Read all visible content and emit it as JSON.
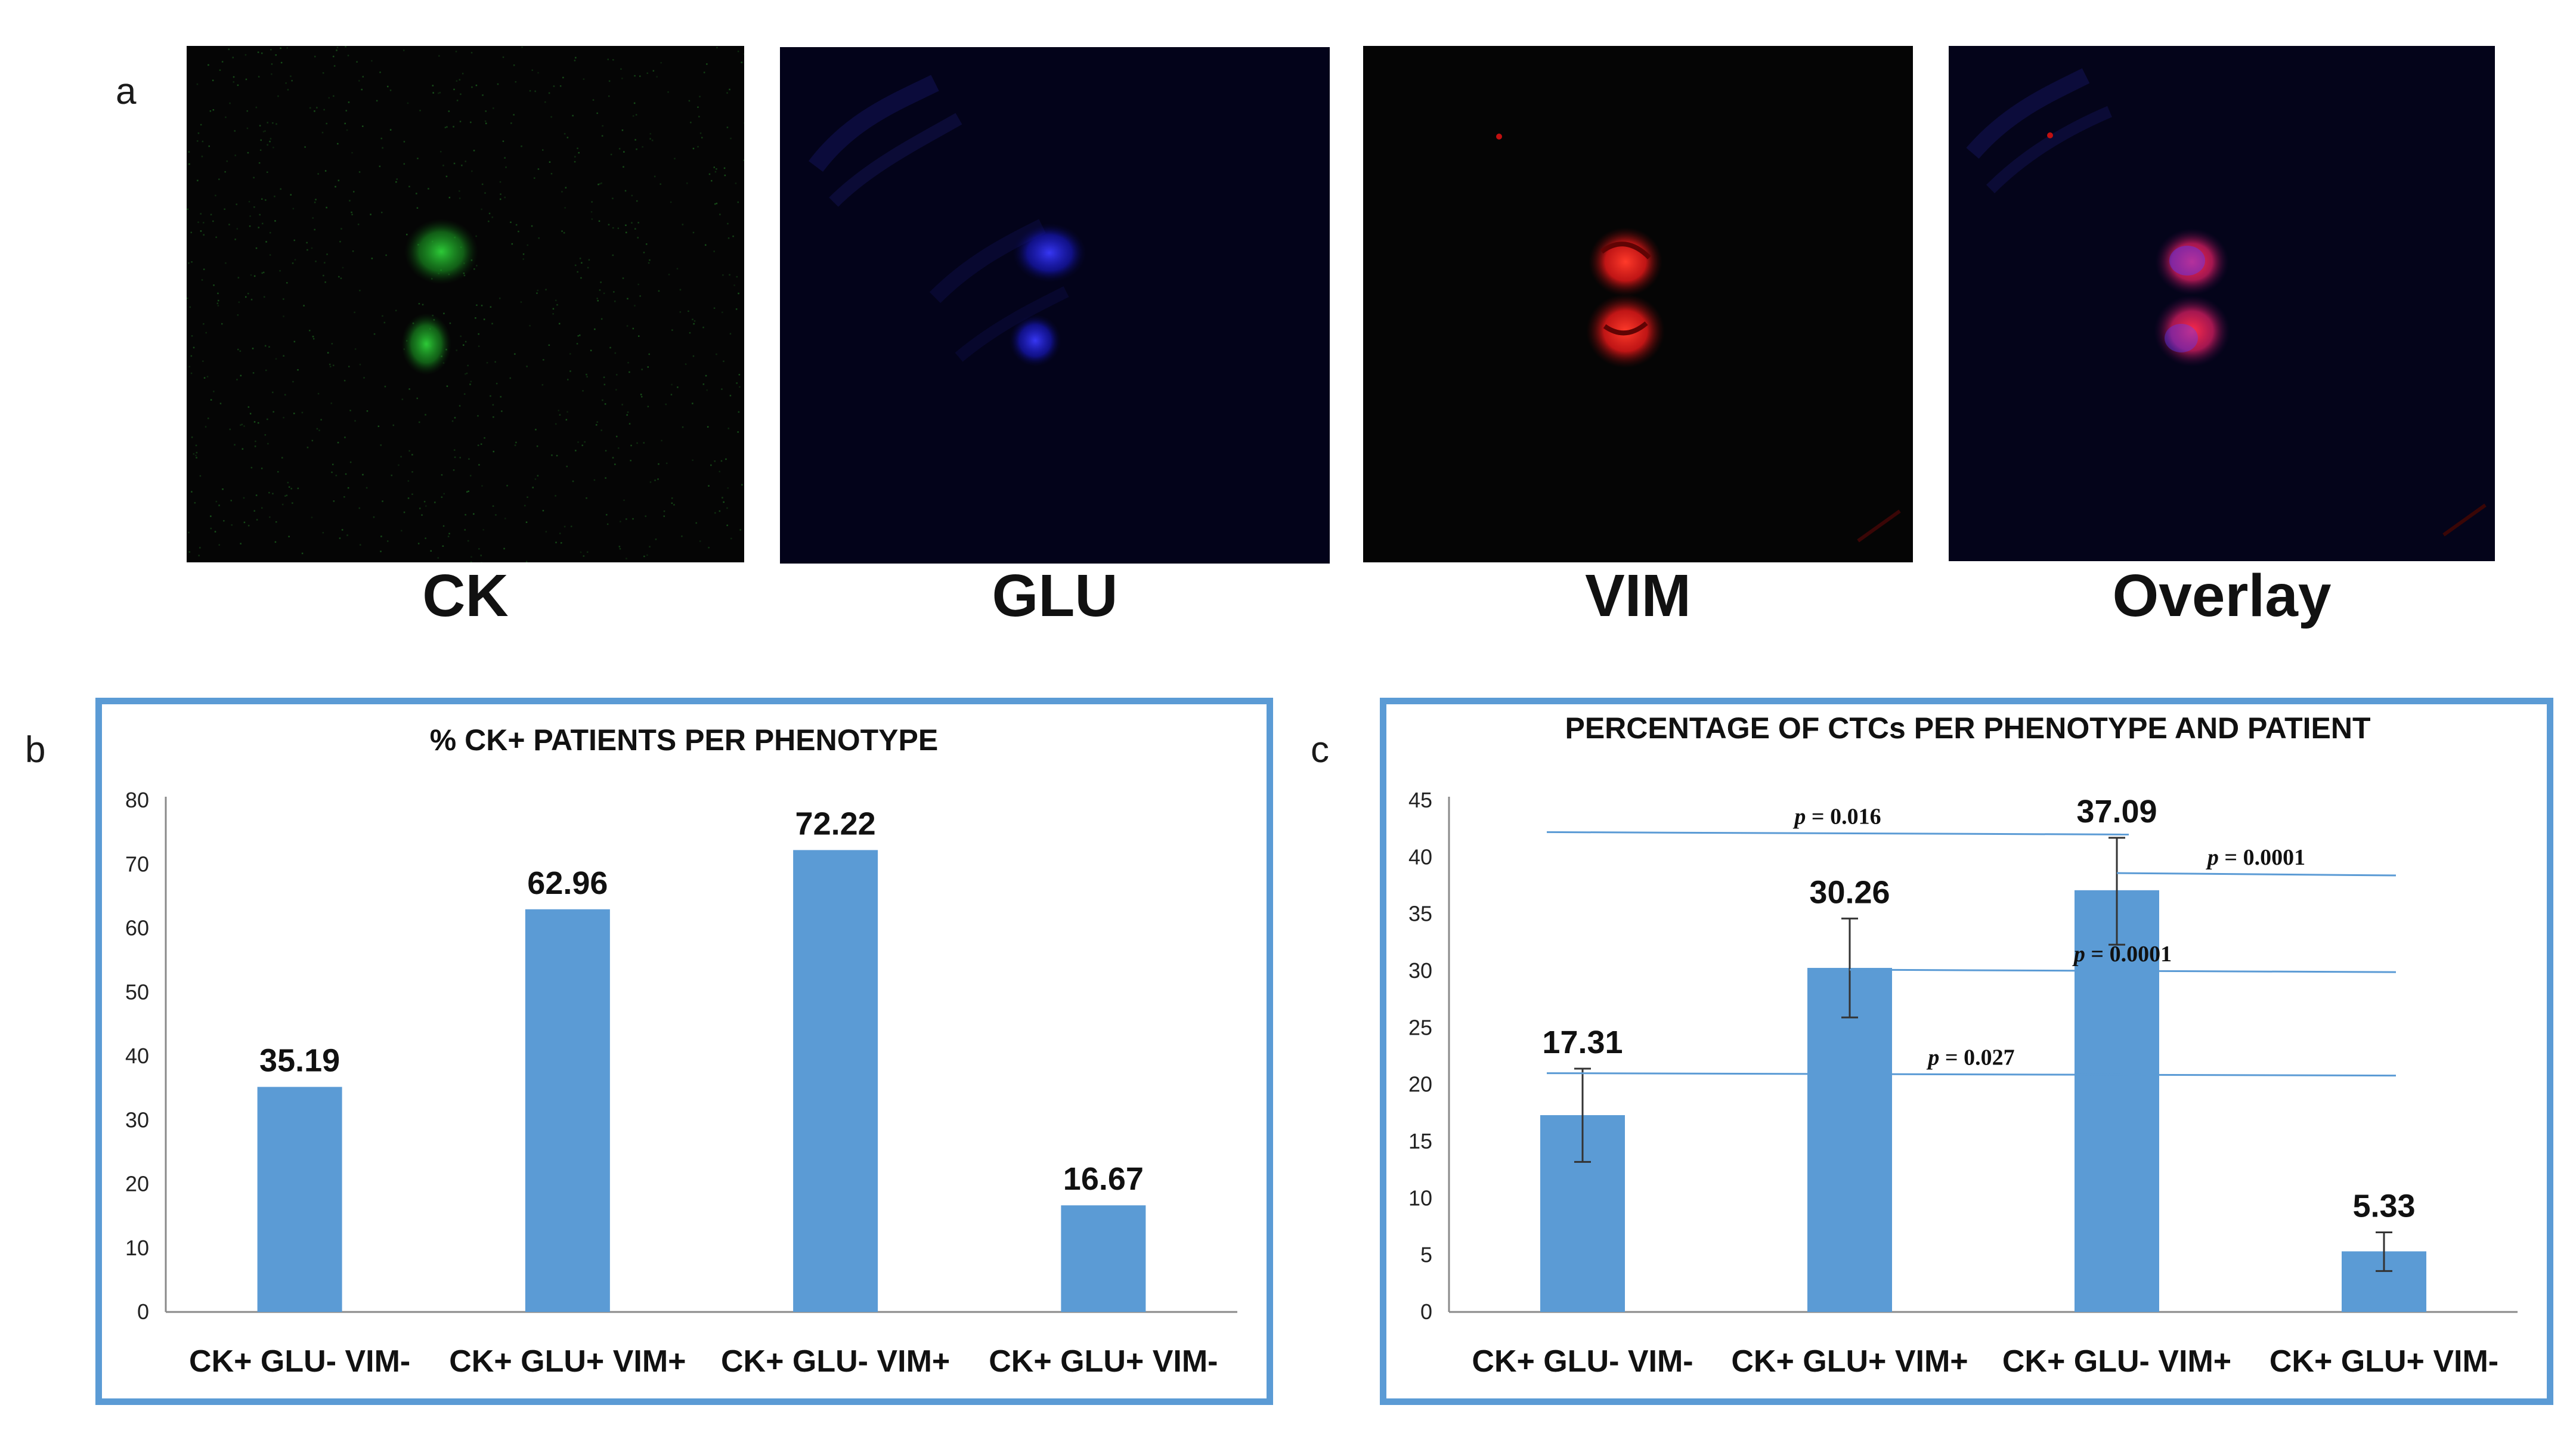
{
  "figure": {
    "panel_a": {
      "letter": "a",
      "images": [
        {
          "caption": "CK",
          "stain_color": "#1faa2a"
        },
        {
          "caption": "GLU",
          "stain_color": "#1a1ae0"
        },
        {
          "caption": "VIM",
          "stain_color": "#e01818"
        },
        {
          "caption": "Overlay",
          "stain_color": "#d0204a"
        }
      ]
    },
    "panel_b": {
      "letter": "b"
    },
    "panel_c": {
      "letter": "c"
    }
  },
  "chart_data": [
    {
      "type": "bar",
      "title": "% CK+ PATIENTS PER PHENOTYPE",
      "categories": [
        "CK+ GLU- VIM-",
        "CK+ GLU+ VIM+",
        "CK+ GLU- VIM+",
        "CK+ GLU+ VIM-"
      ],
      "values": [
        35.19,
        62.96,
        72.22,
        16.67
      ],
      "value_labels": [
        "35.19",
        "62.96",
        "72.22",
        "16.67"
      ],
      "ylim": [
        0,
        80
      ],
      "yticks": [
        0,
        10,
        20,
        30,
        40,
        50,
        60,
        70,
        80
      ],
      "bar_color": "#5b9bd5",
      "grid": false
    },
    {
      "type": "bar",
      "title": "PERCENTAGE OF CTCs  PER PHENOTYPE AND PATIENT",
      "categories": [
        "CK+ GLU- VIM-",
        "CK+ GLU+ VIM+",
        "CK+ GLU- VIM+",
        "CK+ GLU+ VIM-"
      ],
      "values": [
        17.31,
        30.26,
        37.09,
        5.33
      ],
      "value_labels": [
        "17.31",
        "30.26",
        "37.09",
        "5.33"
      ],
      "error_low": [
        13.2,
        25.9,
        32.3,
        3.6
      ],
      "error_high": [
        21.4,
        34.6,
        41.7,
        7.0
      ],
      "ylim": [
        0,
        45
      ],
      "yticks": [
        0,
        5,
        10,
        15,
        20,
        25,
        30,
        35,
        40,
        45
      ],
      "bar_color": "#5b9bd5",
      "grid": false,
      "annotations": [
        {
          "p_label": "p",
          "value": " = 0.016",
          "from": 0,
          "to": 2,
          "y": 42.2
        },
        {
          "p_label": "p",
          "value": " = 0.0001",
          "from": 2,
          "to": 3,
          "y": 38.6
        },
        {
          "p_label": "p",
          "value": " = 0.0001",
          "from": 1,
          "to": 3,
          "y": 30.1
        },
        {
          "p_label": "p",
          "value": " = 0.027",
          "from": 0,
          "to": 3,
          "y": 21.0
        }
      ]
    }
  ]
}
